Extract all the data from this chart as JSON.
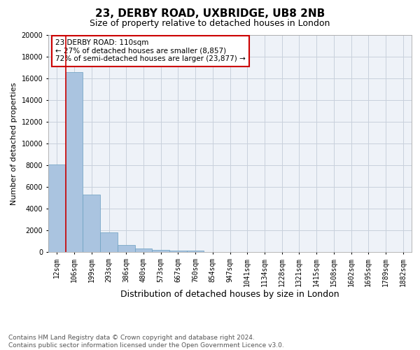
{
  "title1": "23, DERBY ROAD, UXBRIDGE, UB8 2NB",
  "title2": "Size of property relative to detached houses in London",
  "xlabel": "Distribution of detached houses by size in London",
  "ylabel": "Number of detached properties",
  "categories": [
    "12sqm",
    "106sqm",
    "199sqm",
    "293sqm",
    "386sqm",
    "480sqm",
    "573sqm",
    "667sqm",
    "760sqm",
    "854sqm",
    "947sqm",
    "1041sqm",
    "1134sqm",
    "1228sqm",
    "1321sqm",
    "1415sqm",
    "1508sqm",
    "1602sqm",
    "1695sqm",
    "1789sqm",
    "1882sqm"
  ],
  "values": [
    8050,
    16550,
    5300,
    1800,
    650,
    300,
    220,
    160,
    110,
    0,
    0,
    0,
    0,
    0,
    0,
    0,
    0,
    0,
    0,
    0,
    0
  ],
  "bar_color": "#aac4e0",
  "bar_edge_color": "#6a9fc0",
  "vline_color": "#cc0000",
  "vline_pos": 0.5,
  "annotation_text": "23 DERBY ROAD: 110sqm\n← 27% of detached houses are smaller (8,857)\n72% of semi-detached houses are larger (23,877) →",
  "annotation_box_color": "white",
  "annotation_box_edgecolor": "#cc0000",
  "grid_color": "#c8d0dc",
  "bg_color": "#eef2f8",
  "ylim": [
    0,
    20000
  ],
  "yticks": [
    0,
    2000,
    4000,
    6000,
    8000,
    10000,
    12000,
    14000,
    16000,
    18000,
    20000
  ],
  "footer1": "Contains HM Land Registry data © Crown copyright and database right 2024.",
  "footer2": "Contains public sector information licensed under the Open Government Licence v3.0.",
  "title1_fontsize": 11,
  "title2_fontsize": 9,
  "xlabel_fontsize": 9,
  "ylabel_fontsize": 8,
  "tick_fontsize": 7,
  "annot_fontsize": 7.5,
  "footer_fontsize": 6.5
}
